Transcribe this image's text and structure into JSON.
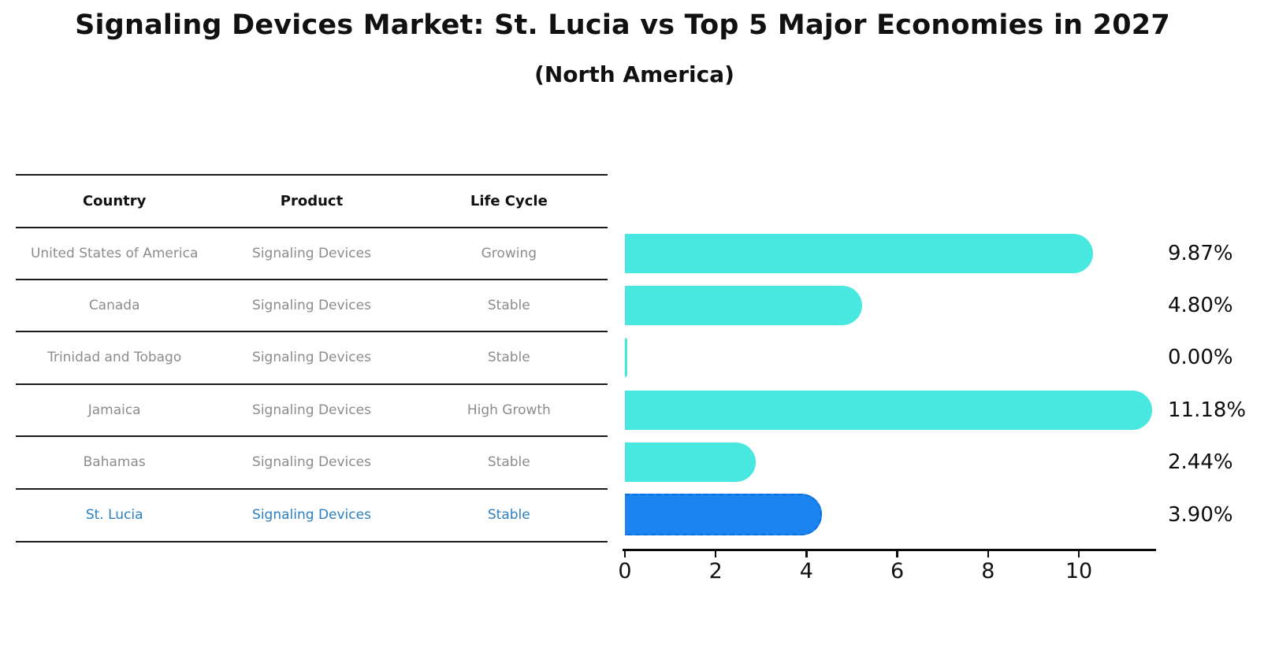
{
  "title": "Signaling Devices Market: St. Lucia vs Top 5 Major Economies in 2027",
  "subtitle": "(North America)",
  "table": {
    "headers": {
      "country": "Country",
      "product": "Product",
      "life_cycle": "Life Cycle"
    },
    "rows": [
      {
        "country": "United States of America",
        "product": "Signaling Devices",
        "life_cycle": "Growing",
        "highlighted": false
      },
      {
        "country": "Canada",
        "product": "Signaling Devices",
        "life_cycle": "Stable",
        "highlighted": false
      },
      {
        "country": "Trinidad and Tobago",
        "product": "Signaling Devices",
        "life_cycle": "Stable",
        "highlighted": false
      },
      {
        "country": "Jamaica",
        "product": "Signaling Devices",
        "life_cycle": "High Growth",
        "highlighted": false
      },
      {
        "country": "Bahamas",
        "product": "Signaling Devices",
        "life_cycle": "Stable",
        "highlighted": false
      },
      {
        "country": "St. Lucia",
        "product": "Signaling Devices",
        "life_cycle": "Stable",
        "highlighted": true
      }
    ]
  },
  "chart_data": {
    "type": "bar",
    "orientation": "horizontal",
    "title": "Signaling Devices Market: St. Lucia vs Top 5 Major Economies in 2027 (North America)",
    "categories": [
      "United States of America",
      "Canada",
      "Trinidad and Tobago",
      "Jamaica",
      "Bahamas",
      "St. Lucia"
    ],
    "values": [
      9.87,
      4.8,
      0.0,
      11.18,
      2.44,
      3.9
    ],
    "value_labels": [
      "9.87%",
      "4.80%",
      "0.00%",
      "11.18%",
      "2.44%",
      "3.90%"
    ],
    "x_ticks": [
      0,
      2,
      4,
      6,
      8,
      10
    ],
    "xlim": [
      0,
      11.7
    ],
    "xlabel": "",
    "ylabel": "",
    "grid": false,
    "legend": "none",
    "bar_color": "#48e8e1",
    "highlight_color": "#1b84f0",
    "highlight_index": 5
  }
}
